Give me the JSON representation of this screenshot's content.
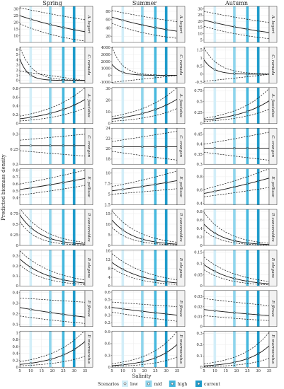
{
  "chart_data": {
    "type": "line",
    "figure": {
      "seasons": [
        "Spring",
        "Summer",
        "Autumn"
      ],
      "ylabel": "Predicted biomass density",
      "xlabel": "Salinity",
      "xlim": [
        5,
        35
      ],
      "xticks": [
        5,
        10,
        15,
        20,
        25,
        30,
        35
      ],
      "legend_title": "Scenarios",
      "legend": [
        {
          "name": "low",
          "salinity": 10,
          "color": "#d3eef8"
        },
        {
          "name": "mid",
          "salinity": 19,
          "color": "#8fd5ec"
        },
        {
          "name": "high",
          "salinity": 25,
          "color": "#45b8de"
        },
        {
          "name": "current",
          "salinity": 30,
          "color": "#1e9bcb"
        }
      ],
      "legend_position": "bottom"
    },
    "species": [
      {
        "name": "A. boyeri",
        "panels": [
          {
            "season": "Spring",
            "ylim": [
              5,
              32
            ],
            "yticks": [
              10,
              15,
              20,
              25,
              30
            ],
            "kind": "exp",
            "x": [
              5,
              35
            ],
            "fit": [
              25,
              13
            ],
            "lower": [
              19,
              6
            ],
            "upper": [
              31,
              22
            ]
          },
          {
            "season": "Summer",
            "ylim": [
              5,
              92
            ],
            "yticks": [
              20,
              40,
              60,
              80
            ],
            "kind": "exp",
            "x": [
              5,
              35
            ],
            "fit": [
              66,
              32
            ],
            "lower": [
              51,
              15
            ],
            "upper": [
              82,
              55
            ]
          },
          {
            "season": "Autumn",
            "ylim": [
              3,
              32
            ],
            "yticks": [
              5,
              10,
              15,
              20,
              25,
              30
            ],
            "kind": "exp",
            "x": [
              5,
              35
            ],
            "fit": [
              21,
              11
            ],
            "lower": [
              16,
              6
            ],
            "upper": [
              28,
              19
            ]
          }
        ]
      },
      {
        "name": "C. ramada",
        "panels": [
          {
            "season": "Spring",
            "ylim": [
              -0.5,
              6.5
            ],
            "yticks": [
              0,
              1,
              2,
              3,
              4,
              5,
              6
            ],
            "kind": "exp",
            "x": [
              5,
              35
            ],
            "fit": [
              4.2,
              0.001
            ],
            "lower": [
              1.8,
              -0.02
            ],
            "upper": [
              6.5,
              0.03
            ]
          },
          {
            "season": "Summer",
            "ylim": [
              -1100,
              4100
            ],
            "yticks": [
              -1000,
              0,
              1000,
              2000,
              3000,
              4000
            ],
            "kind": "exp",
            "x": [
              5,
              35
            ],
            "fit": [
              1600,
              1
            ],
            "lower": [
              -1000,
              -6
            ],
            "upper": [
              4100,
              8
            ]
          },
          {
            "season": "Autumn",
            "ylim": [
              -0.55,
              1.7
            ],
            "yticks": [
              -0.5,
              0.0,
              0.5,
              1.0,
              1.5
            ],
            "kind": "exp",
            "x": [
              5,
              35
            ],
            "fit": [
              0.9,
              0.001
            ],
            "lower": [
              -0.45,
              -0.01
            ],
            "upper": [
              1.65,
              0.02
            ]
          }
        ]
      },
      {
        "name": "A. fasciatus",
        "panels": [
          {
            "season": "Spring",
            "ylim": [
              0,
              0.82
            ],
            "yticks": [
              0.0,
              0.2,
              0.4,
              0.6,
              0.8
            ],
            "kind": "exp",
            "x": [
              5,
              35
            ],
            "fit": [
              0.11,
              0.55
            ],
            "lower": [
              0.06,
              0.36
            ],
            "upper": [
              0.17,
              0.82
            ]
          },
          {
            "season": "Summer",
            "ylim": [
              0,
              31
            ],
            "yticks": [
              0,
              10,
              20,
              30
            ],
            "kind": "exp",
            "x": [
              5,
              35
            ],
            "fit": [
              4,
              21
            ],
            "lower": [
              2,
              13
            ],
            "upper": [
              6,
              31
            ]
          },
          {
            "season": "Autumn",
            "ylim": [
              0,
              0.82
            ],
            "yticks": [
              0.0,
              0.25,
              0.5,
              0.75
            ],
            "kind": "exp",
            "x": [
              5,
              35
            ],
            "fit": [
              0.08,
              0.52
            ],
            "lower": [
              0.05,
              0.33
            ],
            "upper": [
              0.12,
              0.8
            ]
          }
        ]
      },
      {
        "name": "C. crangon",
        "panels": [
          {
            "season": "Spring",
            "ylim": [
              0.2,
              0.32
            ],
            "yticks": [
              0.2,
              0.25,
              0.3
            ],
            "kind": "exp",
            "x": [
              5,
              35
            ],
            "fit": [
              0.262,
              0.262
            ],
            "lower": [
              0.245,
              0.227
            ],
            "upper": [
              0.28,
              0.3
            ]
          },
          {
            "season": "Summer",
            "ylim": [
              17,
              24
            ],
            "yticks": [
              18,
              20,
              22,
              24
            ],
            "kind": "exp",
            "x": [
              5,
              35
            ],
            "fit": [
              20.4,
              20.4
            ],
            "lower": [
              19.5,
              17.8
            ],
            "upper": [
              21.4,
              23.4
            ]
          },
          {
            "season": "Autumn",
            "ylim": [
              0.3,
              0.48
            ],
            "yticks": [
              0.3,
              0.35,
              0.4,
              0.45
            ],
            "kind": "exp",
            "x": [
              5,
              35
            ],
            "fit": [
              0.38,
              0.38
            ],
            "lower": [
              0.36,
              0.32
            ],
            "upper": [
              0.4,
              0.46
            ]
          }
        ]
      },
      {
        "name": "E. pellizae",
        "panels": [
          {
            "season": "Spring",
            "ylim": [
              0.3,
              0.82
            ],
            "yticks": [
              0.4,
              0.5,
              0.6,
              0.7,
              0.8
            ],
            "kind": "exp",
            "x": [
              5,
              35
            ],
            "fit": [
              0.52,
              0.68
            ],
            "lower": [
              0.44,
              0.58
            ],
            "upper": [
              0.6,
              0.8
            ]
          },
          {
            "season": "Summer",
            "ylim": [
              2.5,
              11
            ],
            "yticks": [
              2.5,
              5.0,
              7.5,
              10.0
            ],
            "kind": "exp",
            "x": [
              5,
              35
            ],
            "fit": [
              5.8,
              8.2
            ],
            "lower": [
              5.0,
              6.3
            ],
            "upper": [
              6.8,
              10.5
            ]
          },
          {
            "season": "Autumn",
            "ylim": [
              0.38,
              0.92
            ],
            "yticks": [
              0.4,
              0.6,
              0.8
            ],
            "kind": "exp",
            "x": [
              5,
              35
            ],
            "fit": [
              0.55,
              0.78
            ],
            "lower": [
              0.5,
              0.64
            ],
            "upper": [
              0.61,
              0.92
            ]
          }
        ]
      },
      {
        "name": "P. canceroides",
        "panels": [
          {
            "season": "Spring",
            "ylim": [
              0,
              0.85
            ],
            "yticks": [
              0.0,
              0.25,
              0.5,
              0.75
            ],
            "kind": "exp",
            "x": [
              5,
              35
            ],
            "fit": [
              0.72,
              0.03
            ],
            "lower": [
              0.56,
              0.01
            ],
            "upper": [
              0.88,
              0.07
            ]
          },
          {
            "season": "Summer",
            "ylim": [
              0,
              17
            ],
            "yticks": [
              0,
              5,
              10,
              15
            ],
            "kind": "exp",
            "x": [
              5,
              35
            ],
            "fit": [
              12,
              0.6
            ],
            "lower": [
              8.5,
              0.25
            ],
            "upper": [
              16.5,
              1.5
            ]
          },
          {
            "season": "Autumn",
            "ylim": [
              0,
              0.85
            ],
            "yticks": [
              0.0,
              0.2,
              0.4,
              0.6,
              0.8
            ],
            "kind": "exp",
            "x": [
              5,
              35
            ],
            "fit": [
              0.5,
              0.02
            ],
            "lower": [
              0.36,
              0.008
            ],
            "upper": [
              0.78,
              0.05
            ]
          }
        ]
      },
      {
        "name": "P. elegans",
        "panels": [
          {
            "season": "Spring",
            "ylim": [
              0,
              0.36
            ],
            "yticks": [
              0.0,
              0.1,
              0.2,
              0.3
            ],
            "kind": "exp",
            "x": [
              5,
              35
            ],
            "fit": [
              0.27,
              0.03
            ],
            "lower": [
              0.21,
              0.015
            ],
            "upper": [
              0.35,
              0.06
            ]
          },
          {
            "season": "Summer",
            "ylim": [
              0,
              16.5
            ],
            "yticks": [
              0,
              4,
              8,
              12,
              16
            ],
            "kind": "exp",
            "x": [
              5,
              35
            ],
            "fit": [
              10.8,
              1.4
            ],
            "lower": [
              8.3,
              0.7
            ],
            "upper": [
              14.8,
              2.8
            ]
          },
          {
            "season": "Autumn",
            "ylim": [
              0,
              0.16
            ],
            "yticks": [
              0.0,
              0.05,
              0.1,
              0.15
            ],
            "kind": "exp",
            "x": [
              5,
              35
            ],
            "fit": [
              0.095,
              0.01
            ],
            "lower": [
              0.072,
              0.005
            ],
            "upper": [
              0.128,
              0.02
            ]
          }
        ]
      },
      {
        "name": "P. flexus",
        "panels": [
          {
            "season": "Spring",
            "ylim": [
              0.08,
              0.42
            ],
            "yticks": [
              0.1,
              0.2,
              0.3,
              0.4
            ],
            "kind": "exp",
            "x": [
              5,
              35
            ],
            "fit": [
              0.26,
              0.17
            ],
            "lower": [
              0.18,
              0.11
            ],
            "upper": [
              0.35,
              0.31
            ]
          },
          {
            "season": "Summer",
            "ylim": [
              0.15,
              0.62
            ],
            "yticks": [
              0.2,
              0.3,
              0.4,
              0.5,
              0.6
            ],
            "kind": "exp",
            "x": [
              5,
              35
            ],
            "fit": [
              0.4,
              0.3
            ],
            "lower": [
              0.34,
              0.22
            ],
            "upper": [
              0.47,
              0.41
            ]
          },
          {
            "season": "Autumn",
            "ylim": [
              0,
              0.036
            ],
            "yticks": [
              0.0,
              0.01,
              0.02,
              0.03
            ],
            "kind": "exp",
            "x": [
              5,
              35
            ],
            "fit": [
              0.017,
              0.011
            ],
            "lower": [
              0.011,
              0.006
            ],
            "upper": [
              0.028,
              0.021
            ]
          }
        ]
      },
      {
        "name": "P. marmoratus",
        "panels": [
          {
            "season": "Spring",
            "ylim": [
              0,
              1.05
            ],
            "yticks": [
              0.0,
              0.2,
              0.4,
              0.6,
              0.8,
              1.0
            ],
            "kind": "exp",
            "x": [
              5,
              35
            ],
            "fit": [
              0.08,
              0.75
            ],
            "lower": [
              0.04,
              0.32
            ],
            "upper": [
              0.16,
              1.08
            ]
          },
          {
            "season": "Summer",
            "ylim": [
              0,
              0.92
            ],
            "yticks": [
              0.0,
              0.3,
              0.6,
              0.9
            ],
            "kind": "exp",
            "x": [
              5,
              35
            ],
            "fit": [
              0.04,
              0.58
            ],
            "lower": [
              0.02,
              0.26
            ],
            "upper": [
              0.09,
              0.92
            ]
          },
          {
            "season": "Autumn",
            "ylim": [
              0,
              0.32
            ],
            "yticks": [
              0.0,
              0.1,
              0.2,
              0.3
            ],
            "kind": "exp",
            "x": [
              5,
              35
            ],
            "fit": [
              0.012,
              0.19
            ],
            "lower": [
              0.005,
              0.08
            ],
            "upper": [
              0.03,
              0.31
            ]
          }
        ]
      }
    ]
  }
}
